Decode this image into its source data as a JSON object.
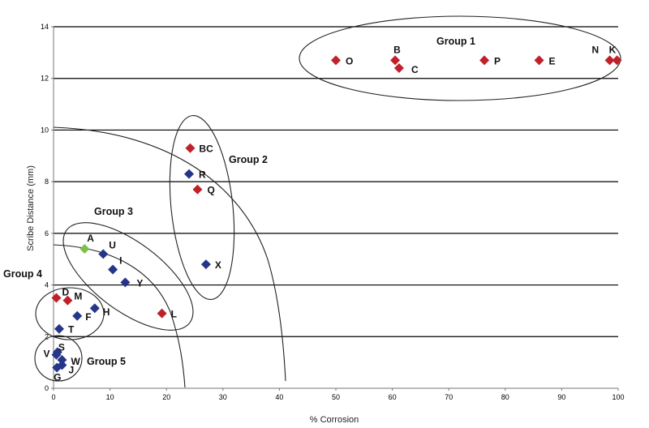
{
  "chart_data": {
    "type": "scatter",
    "xlabel": "% Corrosion",
    "ylabel": "Scribe Distance (mm)",
    "xlim": [
      0,
      100
    ],
    "ylim": [
      0,
      14
    ],
    "xticks": [
      0,
      10,
      20,
      30,
      40,
      50,
      60,
      70,
      80,
      90,
      100
    ],
    "yticks": [
      0,
      2,
      4,
      6,
      8,
      10,
      12,
      14
    ],
    "grid": "horizontal",
    "colors": {
      "red": "#c0202a",
      "blue": "#24358a",
      "green": "#7cc04a"
    },
    "points": [
      {
        "label": "O",
        "x": 50,
        "y": 12.7,
        "color": "red"
      },
      {
        "label": "B",
        "x": 60.5,
        "y": 12.7,
        "color": "red"
      },
      {
        "label": "C",
        "x": 61.2,
        "y": 12.4,
        "color": "red"
      },
      {
        "label": "P",
        "x": 76.3,
        "y": 12.7,
        "color": "red"
      },
      {
        "label": "E",
        "x": 86,
        "y": 12.7,
        "color": "red"
      },
      {
        "label": "N",
        "x": 98.5,
        "y": 12.7,
        "color": "red"
      },
      {
        "label": "K",
        "x": 99.8,
        "y": 12.7,
        "color": "red"
      },
      {
        "label": "BC",
        "x": 24.2,
        "y": 9.3,
        "color": "red"
      },
      {
        "label": "R",
        "x": 24,
        "y": 8.3,
        "color": "blue"
      },
      {
        "label": "Q",
        "x": 25.5,
        "y": 7.7,
        "color": "red"
      },
      {
        "label": "X",
        "x": 27,
        "y": 4.8,
        "color": "blue"
      },
      {
        "label": "A",
        "x": 5.5,
        "y": 5.4,
        "color": "green"
      },
      {
        "label": "U",
        "x": 8.8,
        "y": 5.2,
        "color": "blue"
      },
      {
        "label": "I",
        "x": 10.5,
        "y": 4.6,
        "color": "blue"
      },
      {
        "label": "Y",
        "x": 12.7,
        "y": 4.1,
        "color": "blue"
      },
      {
        "label": "L",
        "x": 19.2,
        "y": 2.9,
        "color": "red"
      },
      {
        "label": "D",
        "x": 0.5,
        "y": 3.5,
        "color": "red"
      },
      {
        "label": "M",
        "x": 2.5,
        "y": 3.4,
        "color": "red"
      },
      {
        "label": "H",
        "x": 7.3,
        "y": 3.1,
        "color": "blue"
      },
      {
        "label": "F",
        "x": 4.2,
        "y": 2.8,
        "color": "blue"
      },
      {
        "label": "T",
        "x": 1,
        "y": 2.3,
        "color": "blue"
      },
      {
        "label": "S",
        "x": 0.7,
        "y": 1.4,
        "color": "blue"
      },
      {
        "label": "V",
        "x": 0.5,
        "y": 1.3,
        "color": "blue"
      },
      {
        "label": "W",
        "x": 1.5,
        "y": 1.1,
        "color": "blue"
      },
      {
        "label": "J",
        "x": 1.5,
        "y": 0.9,
        "color": "blue"
      },
      {
        "label": "G",
        "x": 0.6,
        "y": 0.8,
        "color": "blue"
      }
    ],
    "annotations": [
      "Group 1",
      "Group 2",
      "Group 3",
      "Group 4",
      "Group 5"
    ]
  }
}
